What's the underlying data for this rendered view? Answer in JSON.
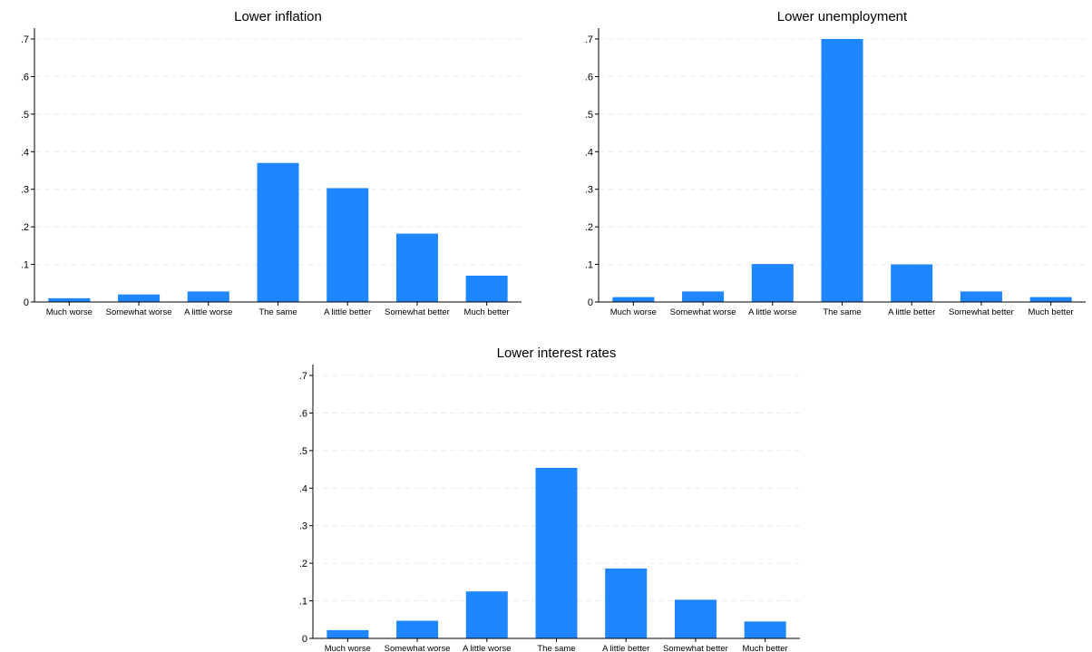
{
  "chart_data": [
    {
      "type": "bar",
      "title": "Lower inflation",
      "categories": [
        "Much worse",
        "Somewhat worse",
        "A little worse",
        "The same",
        "A little better",
        "Somewhat better",
        "Much better"
      ],
      "values": [
        0.01,
        0.02,
        0.028,
        0.37,
        0.303,
        0.182,
        0.07
      ],
      "ylim": [
        0,
        0.7
      ],
      "yticks": [
        0,
        0.1,
        0.2,
        0.3,
        0.4,
        0.5,
        0.6,
        0.7
      ],
      "ytick_labels": [
        "0",
        ".1",
        ".2",
        ".3",
        ".4",
        ".5",
        ".6",
        ".7"
      ],
      "grid": true,
      "bar_color": "#1e87ff"
    },
    {
      "type": "bar",
      "title": "Lower unemployment",
      "categories": [
        "Much worse",
        "Somewhat worse",
        "A little worse",
        "The same",
        "A little better",
        "Somewhat better",
        "Much better"
      ],
      "values": [
        0.013,
        0.028,
        0.101,
        0.7,
        0.1,
        0.028,
        0.013
      ],
      "ylim": [
        0,
        0.7
      ],
      "yticks": [
        0,
        0.1,
        0.2,
        0.3,
        0.4,
        0.5,
        0.6,
        0.7
      ],
      "ytick_labels": [
        "0",
        ".1",
        ".2",
        ".3",
        ".4",
        ".5",
        ".6",
        ".7"
      ],
      "grid": true,
      "bar_color": "#1e87ff"
    },
    {
      "type": "bar",
      "title": "Lower interest rates",
      "categories": [
        "Much worse",
        "Somewhat worse",
        "A little worse",
        "The same",
        "A little better",
        "Somewhat better",
        "Much better"
      ],
      "values": [
        0.022,
        0.047,
        0.125,
        0.454,
        0.186,
        0.103,
        0.045
      ],
      "ylim": [
        0,
        0.7
      ],
      "yticks": [
        0,
        0.1,
        0.2,
        0.3,
        0.4,
        0.5,
        0.6,
        0.7
      ],
      "ytick_labels": [
        "0",
        ".1",
        ".2",
        ".3",
        ".4",
        ".5",
        ".6",
        ".7"
      ],
      "grid": true,
      "bar_color": "#1e87ff"
    }
  ]
}
